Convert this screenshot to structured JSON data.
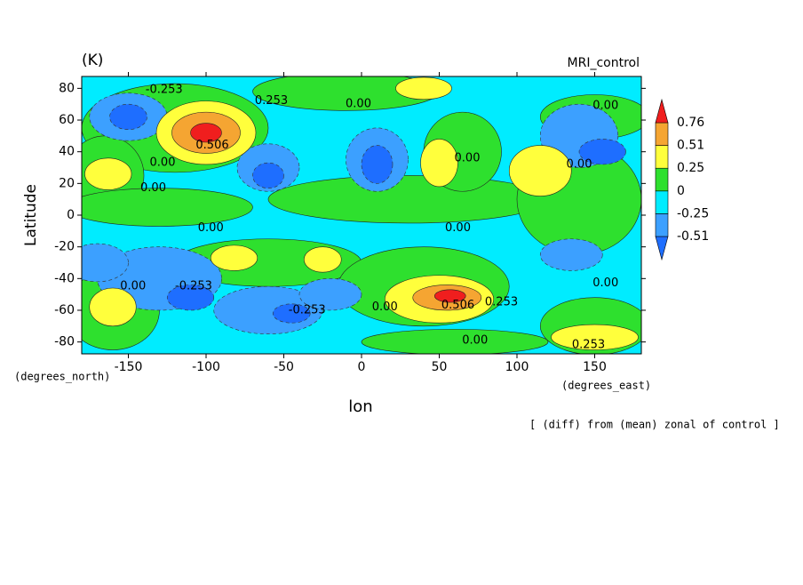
{
  "chart_data": {
    "type": "contour",
    "title": "(K)",
    "subtitle": "MRI_control",
    "ylabel": "Latitude",
    "xlabel": "lon",
    "yunit": "(degrees_north)",
    "xunit": "(degrees_east)",
    "annotation": "[ (diff) from (mean) zonal of control ]",
    "xlim": [
      -180,
      180
    ],
    "ylim": [
      -87.5,
      87.5
    ],
    "xticks": [
      -150,
      -100,
      -50,
      0,
      50,
      100,
      150
    ],
    "yticks": [
      -80,
      -60,
      -40,
      -20,
      0,
      20,
      40,
      60,
      80
    ],
    "colorbar": {
      "levels": [
        -0.51,
        -0.25,
        0,
        0.25,
        0.51,
        0.76
      ],
      "colors": [
        "#1e6eff",
        "#3ca0ff",
        "#00ecff",
        "#2ee02e",
        "#ffff3c",
        "#f5a532",
        "#f01e1e"
      ]
    },
    "regions": [
      {
        "lon": 0,
        "lat": 0,
        "rlon": 400,
        "rlat": 200,
        "value": -0.1
      },
      {
        "lon": -120,
        "lat": 55,
        "rlon": 60,
        "rlat": 28,
        "value": 0.1
      },
      {
        "lon": -165,
        "lat": 25,
        "rlon": 25,
        "rlat": 25,
        "value": 0.1
      },
      {
        "lon": -130,
        "lat": 5,
        "rlon": 60,
        "rlat": 12,
        "value": 0.1
      },
      {
        "lon": 30,
        "lat": 10,
        "rlon": 90,
        "rlat": 15,
        "value": 0.1
      },
      {
        "lon": 140,
        "lat": 10,
        "rlon": 40,
        "rlat": 35,
        "value": 0.1
      },
      {
        "lon": 150,
        "lat": 62,
        "rlon": 35,
        "rlat": 14,
        "value": 0.1
      },
      {
        "lon": -10,
        "lat": 78,
        "rlon": 60,
        "rlat": 12,
        "value": 0.1
      },
      {
        "lon": 65,
        "lat": 40,
        "rlon": 25,
        "rlat": 25,
        "value": 0.1
      },
      {
        "lon": -60,
        "lat": -30,
        "rlon": 60,
        "rlat": 15,
        "value": 0.1
      },
      {
        "lon": 40,
        "lat": -45,
        "rlon": 55,
        "rlat": 25,
        "value": 0.1
      },
      {
        "lon": -160,
        "lat": -60,
        "rlon": 30,
        "rlat": 25,
        "value": 0.1
      },
      {
        "lon": 150,
        "lat": -70,
        "rlon": 35,
        "rlat": 18,
        "value": 0.1
      },
      {
        "lon": 60,
        "lat": -80,
        "rlon": 60,
        "rlat": 8,
        "value": 0.1
      },
      {
        "lon": -150,
        "lat": 62,
        "rlon": 25,
        "rlat": 15,
        "value": -0.35
      },
      {
        "lon": -60,
        "lat": 30,
        "rlon": 20,
        "rlat": 15,
        "value": -0.35
      },
      {
        "lon": 10,
        "lat": 35,
        "rlon": 20,
        "rlat": 20,
        "value": -0.35
      },
      {
        "lon": -130,
        "lat": -40,
        "rlon": 40,
        "rlat": 20,
        "value": -0.35
      },
      {
        "lon": -60,
        "lat": -60,
        "rlon": 35,
        "rlat": 15,
        "value": -0.35
      },
      {
        "lon": 140,
        "lat": 50,
        "rlon": 25,
        "rlat": 20,
        "value": -0.35
      },
      {
        "lon": 135,
        "lat": -25,
        "rlon": 20,
        "rlat": 10,
        "value": -0.35
      },
      {
        "lon": -20,
        "lat": -50,
        "rlon": 20,
        "rlat": 10,
        "value": -0.35
      },
      {
        "lon": -170,
        "lat": -30,
        "rlon": 20,
        "rlat": 12,
        "value": -0.35
      },
      {
        "lon": -150,
        "lat": 62,
        "rlon": 12,
        "rlat": 8,
        "value": -0.6
      },
      {
        "lon": -60,
        "lat": 25,
        "rlon": 10,
        "rlat": 8,
        "value": -0.6
      },
      {
        "lon": 10,
        "lat": 32,
        "rlon": 10,
        "rlat": 12,
        "value": -0.6
      },
      {
        "lon": -110,
        "lat": -52,
        "rlon": 15,
        "rlat": 8,
        "value": -0.6
      },
      {
        "lon": -45,
        "lat": -62,
        "rlon": 12,
        "rlat": 6,
        "value": -0.6
      },
      {
        "lon": 155,
        "lat": 40,
        "rlon": 15,
        "rlat": 8,
        "value": -0.6
      },
      {
        "lon": -100,
        "lat": 52,
        "rlon": 32,
        "rlat": 20,
        "value": 0.3
      },
      {
        "lon": -163,
        "lat": 26,
        "rlon": 15,
        "rlat": 10,
        "value": 0.3
      },
      {
        "lon": 115,
        "lat": 28,
        "rlon": 20,
        "rlat": 16,
        "value": 0.3
      },
      {
        "lon": 50,
        "lat": 33,
        "rlon": 12,
        "rlat": 15,
        "value": 0.3
      },
      {
        "lon": 40,
        "lat": 80,
        "rlon": 18,
        "rlat": 7,
        "value": 0.3
      },
      {
        "lon": -82,
        "lat": -27,
        "rlon": 15,
        "rlat": 8,
        "value": 0.3
      },
      {
        "lon": -25,
        "lat": -28,
        "rlon": 12,
        "rlat": 8,
        "value": 0.3
      },
      {
        "lon": 50,
        "lat": -53,
        "rlon": 35,
        "rlat": 15,
        "value": 0.3
      },
      {
        "lon": -160,
        "lat": -58,
        "rlon": 15,
        "rlat": 12,
        "value": 0.3
      },
      {
        "lon": 150,
        "lat": -77,
        "rlon": 28,
        "rlat": 8,
        "value": 0.3
      },
      {
        "lon": -100,
        "lat": 52,
        "rlon": 22,
        "rlat": 13,
        "value": 0.6
      },
      {
        "lon": 55,
        "lat": -52,
        "rlon": 22,
        "rlat": 8,
        "value": 0.6
      },
      {
        "lon": -100,
        "lat": 52,
        "rlon": 10,
        "rlat": 6,
        "value": 0.8
      },
      {
        "lon": 57,
        "lat": -51,
        "rlon": 10,
        "rlat": 4,
        "value": 0.8
      }
    ],
    "contour_labels": [
      {
        "text": "-0.253",
        "lon": -127,
        "lat": 79
      },
      {
        "text": "0.253",
        "lon": -58,
        "lat": 72
      },
      {
        "text": "0.00",
        "lon": -2,
        "lat": 70
      },
      {
        "text": "0.00",
        "lon": 157,
        "lat": 69
      },
      {
        "text": "0.506",
        "lon": -96,
        "lat": 44
      },
      {
        "text": "0.00",
        "lon": -128,
        "lat": 33
      },
      {
        "text": "0.00",
        "lon": -134,
        "lat": 17
      },
      {
        "text": "0.00",
        "lon": 68,
        "lat": 36
      },
      {
        "text": "0.00",
        "lon": 140,
        "lat": 32
      },
      {
        "text": "0.00",
        "lon": -97,
        "lat": -8
      },
      {
        "text": "0.00",
        "lon": 62,
        "lat": -8
      },
      {
        "text": "-0.253",
        "lon": -108,
        "lat": -45
      },
      {
        "text": "0.00",
        "lon": -147,
        "lat": -45
      },
      {
        "text": "-0.253",
        "lon": -35,
        "lat": -60
      },
      {
        "text": "0.00",
        "lon": 15,
        "lat": -58
      },
      {
        "text": "0.506",
        "lon": 62,
        "lat": -57
      },
      {
        "text": "0.253",
        "lon": 90,
        "lat": -55
      },
      {
        "text": "0.00",
        "lon": 157,
        "lat": -43
      },
      {
        "text": "0.00",
        "lon": 73,
        "lat": -79
      },
      {
        "text": "0.253",
        "lon": 146,
        "lat": -82
      }
    ]
  }
}
